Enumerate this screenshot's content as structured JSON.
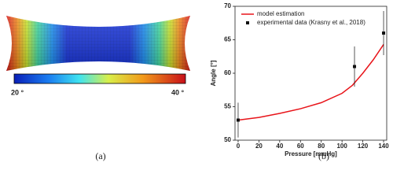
{
  "panel_a": {
    "colorbar_min_label": "20 °",
    "colorbar_max_label": "40 °",
    "caption": "(a)"
  },
  "panel_b": {
    "caption": "(b)"
  },
  "chart_data": {
    "type": "line",
    "xlabel": "Pressure [mmHg]",
    "ylabel": "Angle [°]",
    "xlim": [
      -3,
      143
    ],
    "ylim": [
      50,
      70
    ],
    "xticks": [
      0,
      20,
      40,
      60,
      80,
      100,
      120,
      140
    ],
    "yticks": [
      50,
      55,
      60,
      65,
      70
    ],
    "legend": "upper left",
    "series": [
      {
        "name": "model estimation",
        "color": "#e8141a",
        "type": "line",
        "x": [
          0,
          20,
          40,
          60,
          80,
          100,
          110,
          120,
          130,
          140
        ],
        "values": [
          53,
          53.4,
          54,
          54.7,
          55.6,
          57,
          58.2,
          60,
          62,
          64.3
        ]
      },
      {
        "name": "experimental data (Krasny et al., 2018)",
        "color": "#111111",
        "type": "scatter",
        "x": [
          0,
          112,
          140
        ],
        "values": [
          53,
          61,
          66
        ],
        "errors": [
          2.6,
          3,
          3.3
        ]
      }
    ]
  }
}
